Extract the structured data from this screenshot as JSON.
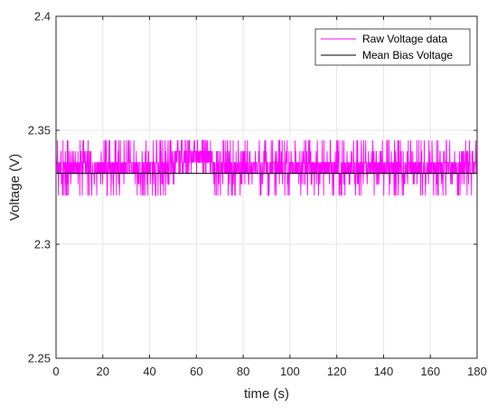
{
  "chart_data": {
    "type": "line",
    "title": "",
    "xlabel": "time (s)",
    "ylabel": "Voltage (V)",
    "xlim": [
      0,
      180
    ],
    "ylim": [
      2.25,
      2.4
    ],
    "xticks": [
      0,
      20,
      40,
      60,
      80,
      100,
      120,
      140,
      160,
      180
    ],
    "yticks": [
      2.25,
      2.3,
      2.35,
      2.4
    ],
    "xtick_labels": [
      "0",
      "20",
      "40",
      "60",
      "80",
      "100",
      "120",
      "140",
      "160",
      "180"
    ],
    "ytick_labels": [
      "2.25",
      "2.3",
      "2.35",
      "2.4"
    ],
    "grid": true,
    "legend_position": "top-right",
    "series": [
      {
        "name": "Raw Voltage data",
        "color": "#ff00ff",
        "quantization_levels": [
          2.3214,
          2.3263,
          2.3311,
          2.3359,
          2.3408,
          2.3456
        ],
        "segments": [
          {
            "x_start": 0,
            "x_end": 51,
            "typical": [
              2.3311,
              2.3359
            ],
            "min": 2.3214,
            "max": 2.3456
          },
          {
            "x_start": 51,
            "x_end": 67,
            "typical": [
              2.3359,
              2.3408
            ],
            "min": 2.3311,
            "max": 2.3456
          },
          {
            "x_start": 67,
            "x_end": 180,
            "typical": [
              2.3311,
              2.3359
            ],
            "min": 2.3214,
            "max": 2.3456
          }
        ]
      },
      {
        "name": "Mean Bias Voltage",
        "color": "#000000",
        "segments": [
          {
            "x_start": 0,
            "x_end": 67,
            "y": 2.3311
          },
          {
            "x_start": 67,
            "x_end": 180,
            "y": 2.3311
          }
        ]
      }
    ]
  }
}
